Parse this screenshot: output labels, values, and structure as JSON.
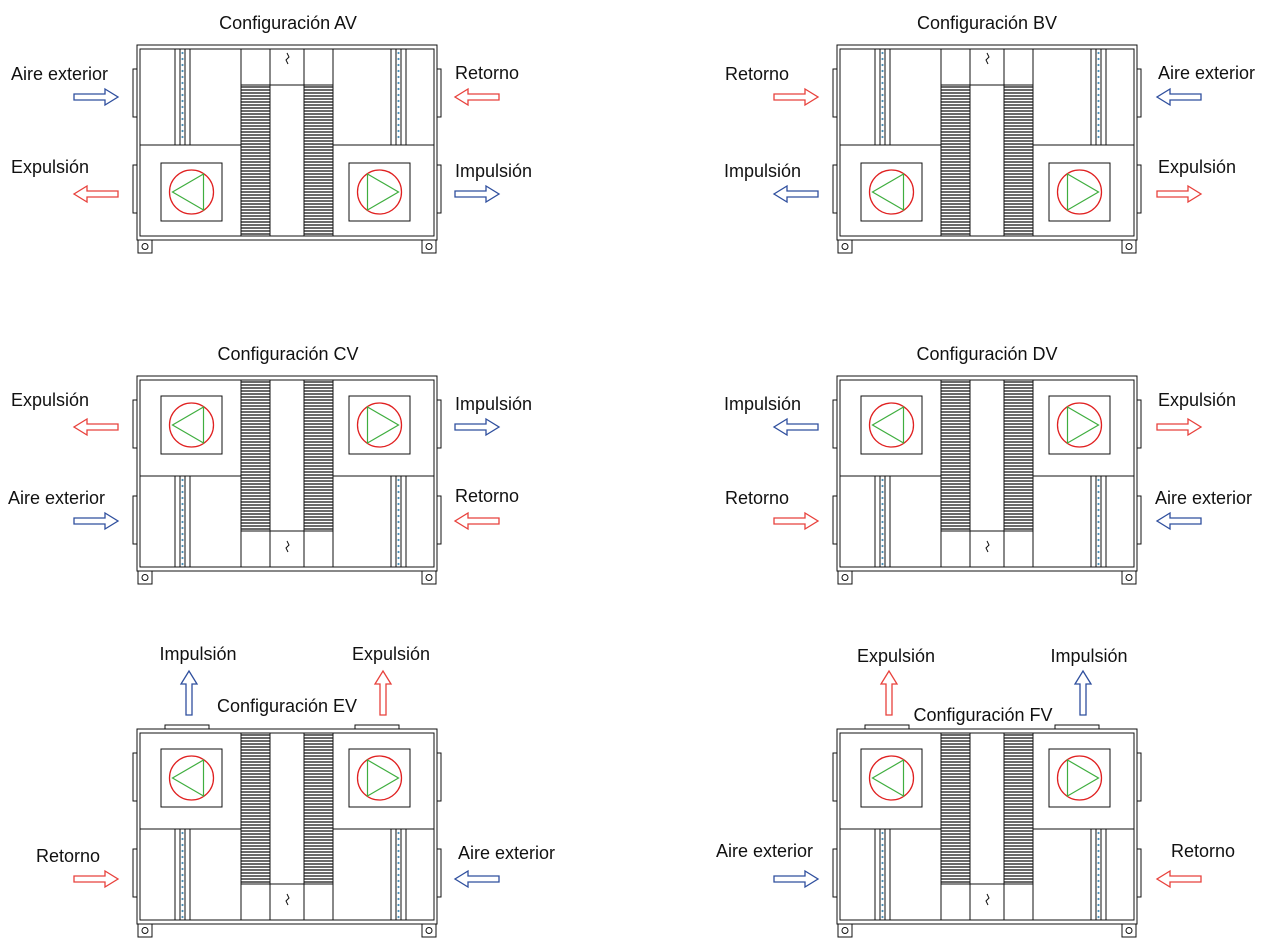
{
  "colors": {
    "line": "#111111",
    "cold_air": "#2f4f9e",
    "warm_air": "#e8413c",
    "fan_circle": "#e02020",
    "fan_triangle": "#3fae3f",
    "filter_dots": "#4a90b8"
  },
  "configs": [
    {
      "id": "AV",
      "title": "Configuración AV",
      "labels": {
        "top_left": "Aire exterior",
        "top_right": "Retorno",
        "bottom_left": "Expulsión",
        "bottom_right": "Impulsión"
      },
      "arrows": {
        "top_left": "cold",
        "top_right": "warm",
        "bottom_left": "warm",
        "bottom_right": "cold"
      }
    },
    {
      "id": "BV",
      "title": "Configuración BV",
      "labels": {
        "top_left": "Retorno",
        "top_right": "Aire exterior",
        "bottom_left": "Impulsión",
        "bottom_right": "Expulsión"
      },
      "arrows": {
        "top_left": "warm",
        "top_right": "cold",
        "bottom_left": "cold",
        "bottom_right": "warm"
      }
    },
    {
      "id": "CV",
      "title": "Configuración CV",
      "labels": {
        "top_left": "Expulsión",
        "top_right": "Impulsión",
        "bottom_left": "Aire exterior",
        "bottom_right": "Retorno"
      },
      "arrows": {
        "top_left": "warm",
        "top_right": "cold",
        "bottom_left": "cold",
        "bottom_right": "warm"
      }
    },
    {
      "id": "DV",
      "title": "Configuración DV",
      "labels": {
        "top_left": "Impulsión",
        "top_right": "Expulsión",
        "bottom_left": "Retorno",
        "bottom_right": "Aire exterior"
      },
      "arrows": {
        "top_left": "cold",
        "top_right": "warm",
        "bottom_left": "warm",
        "bottom_right": "cold"
      }
    },
    {
      "id": "EV",
      "title": "Configuración EV",
      "labels": {
        "top_left": "Impulsión",
        "top_right": "Expulsión",
        "bottom_left": "Retorno",
        "bottom_right": "Aire exterior"
      },
      "arrows": {
        "top_left": "cold",
        "top_right": "warm",
        "bottom_left": "warm",
        "bottom_right": "cold"
      }
    },
    {
      "id": "FV",
      "title": "Configuración FV",
      "labels": {
        "top_left": "Expulsión",
        "top_right": "Impulsión",
        "bottom_left": "Aire exterior",
        "bottom_right": "Retorno"
      },
      "arrows": {
        "top_left": "warm",
        "top_right": "cold",
        "bottom_left": "cold",
        "bottom_right": "warm"
      }
    }
  ]
}
